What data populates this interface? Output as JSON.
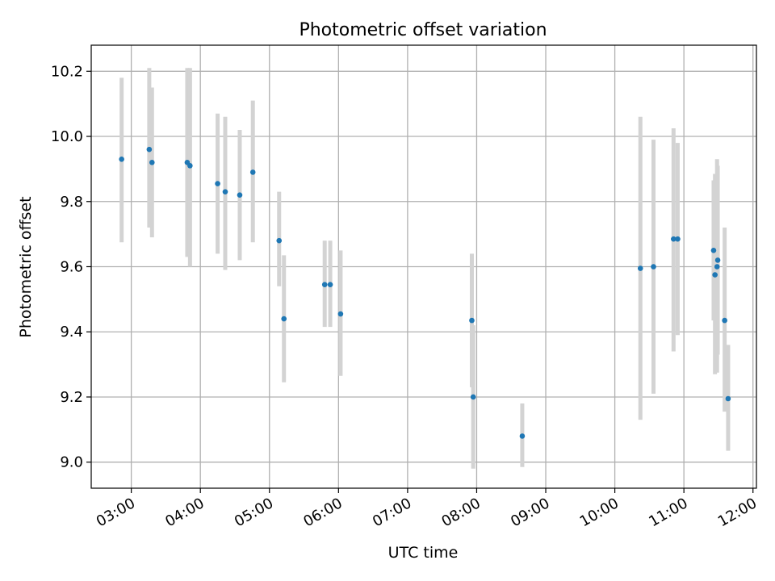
{
  "chart_data": {
    "type": "scatter",
    "title": "Photometric offset variation",
    "xlabel": "UTC time",
    "ylabel": "Photometric offset",
    "xlim": [
      2.42,
      12.05
    ],
    "ylim": [
      8.92,
      10.28
    ],
    "grid": true,
    "colors": {
      "point": "#1f77b4",
      "errorbar": "#d3d3d3",
      "grid": "#b0b0b0"
    },
    "x_ticks": [
      {
        "value": 3,
        "label": "03:00"
      },
      {
        "value": 4,
        "label": "04:00"
      },
      {
        "value": 5,
        "label": "05:00"
      },
      {
        "value": 6,
        "label": "06:00"
      },
      {
        "value": 7,
        "label": "07:00"
      },
      {
        "value": 8,
        "label": "08:00"
      },
      {
        "value": 9,
        "label": "09:00"
      },
      {
        "value": 10,
        "label": "10:00"
      },
      {
        "value": 11,
        "label": "11:00"
      },
      {
        "value": 12,
        "label": "12:00"
      }
    ],
    "y_ticks": [
      {
        "value": 9.0,
        "label": "9.0"
      },
      {
        "value": 9.2,
        "label": "9.2"
      },
      {
        "value": 9.4,
        "label": "9.4"
      },
      {
        "value": 9.6,
        "label": "9.6"
      },
      {
        "value": 9.8,
        "label": "9.8"
      },
      {
        "value": 10.0,
        "label": "10.0"
      },
      {
        "value": 10.2,
        "label": "10.2"
      }
    ],
    "points": [
      {
        "x": 2.86,
        "y": 9.93,
        "lo": 9.675,
        "hi": 10.18
      },
      {
        "x": 3.26,
        "y": 9.96,
        "lo": 9.72,
        "hi": 10.21
      },
      {
        "x": 3.3,
        "y": 9.92,
        "lo": 9.69,
        "hi": 10.15
      },
      {
        "x": 3.81,
        "y": 9.92,
        "lo": 9.63,
        "hi": 10.21
      },
      {
        "x": 3.85,
        "y": 9.91,
        "lo": 9.6,
        "hi": 10.21
      },
      {
        "x": 4.25,
        "y": 9.855,
        "lo": 9.64,
        "hi": 10.07
      },
      {
        "x": 4.36,
        "y": 9.83,
        "lo": 9.59,
        "hi": 10.06
      },
      {
        "x": 4.57,
        "y": 9.82,
        "lo": 9.62,
        "hi": 10.02
      },
      {
        "x": 4.76,
        "y": 9.89,
        "lo": 9.675,
        "hi": 10.11
      },
      {
        "x": 5.14,
        "y": 9.68,
        "lo": 9.54,
        "hi": 9.83
      },
      {
        "x": 5.21,
        "y": 9.44,
        "lo": 9.245,
        "hi": 9.635
      },
      {
        "x": 5.8,
        "y": 9.545,
        "lo": 9.415,
        "hi": 9.68
      },
      {
        "x": 5.88,
        "y": 9.545,
        "lo": 9.415,
        "hi": 9.68
      },
      {
        "x": 6.03,
        "y": 9.455,
        "lo": 9.265,
        "hi": 9.65
      },
      {
        "x": 7.93,
        "y": 9.435,
        "lo": 9.23,
        "hi": 9.64
      },
      {
        "x": 7.95,
        "y": 9.2,
        "lo": 8.98,
        "hi": 9.42
      },
      {
        "x": 8.66,
        "y": 9.08,
        "lo": 8.985,
        "hi": 9.18
      },
      {
        "x": 10.37,
        "y": 9.595,
        "lo": 9.13,
        "hi": 10.06
      },
      {
        "x": 10.56,
        "y": 9.6,
        "lo": 9.21,
        "hi": 9.99
      },
      {
        "x": 10.85,
        "y": 9.685,
        "lo": 9.34,
        "hi": 10.025
      },
      {
        "x": 10.91,
        "y": 9.685,
        "lo": 9.39,
        "hi": 9.98
      },
      {
        "x": 11.43,
        "y": 9.65,
        "lo": 9.435,
        "hi": 9.865
      },
      {
        "x": 11.45,
        "y": 9.575,
        "lo": 9.27,
        "hi": 9.885
      },
      {
        "x": 11.48,
        "y": 9.6,
        "lo": 9.275,
        "hi": 9.93
      },
      {
        "x": 11.49,
        "y": 9.62,
        "lo": 9.33,
        "hi": 9.91
      },
      {
        "x": 11.59,
        "y": 9.435,
        "lo": 9.155,
        "hi": 9.72
      },
      {
        "x": 11.64,
        "y": 9.195,
        "lo": 9.035,
        "hi": 9.36
      }
    ]
  }
}
